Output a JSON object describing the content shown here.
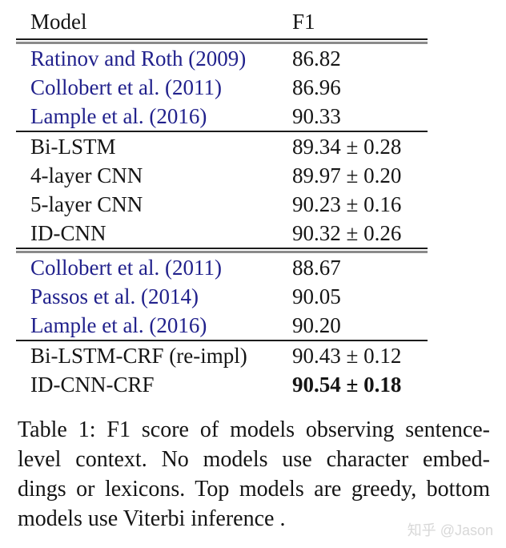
{
  "table": {
    "header": {
      "model": "Model",
      "f1": "F1"
    },
    "groups": [
      {
        "rows": [
          {
            "model": "Ratinov and Roth (2009)",
            "f1": "86.82",
            "link": true
          },
          {
            "model": "Collobert et al. (2011)",
            "f1": "86.96",
            "link": true
          },
          {
            "model": "Lample et al. (2016)",
            "f1": "90.33",
            "link": true
          }
        ]
      },
      {
        "rows": [
          {
            "model": "Bi-LSTM",
            "f1": "89.34 ± 0.28",
            "link": false
          },
          {
            "model": "4-layer CNN",
            "f1": "89.97 ± 0.20",
            "link": false
          },
          {
            "model": "5-layer CNN",
            "f1": "90.23 ± 0.16",
            "link": false
          },
          {
            "model": "ID-CNN",
            "f1": "90.32 ± 0.26",
            "link": false
          }
        ]
      },
      {
        "rows": [
          {
            "model": "Collobert et al. (2011)",
            "f1": "88.67",
            "link": true
          },
          {
            "model": "Passos et al. (2014)",
            "f1": "90.05",
            "link": true
          },
          {
            "model": "Lample et al. (2016)",
            "f1": "90.20",
            "link": true
          }
        ]
      },
      {
        "rows": [
          {
            "model": "Bi-LSTM-CRF (re-impl)",
            "f1": "90.43 ± 0.12",
            "link": false
          },
          {
            "model": "ID-CNN-CRF",
            "f1": "90.54 ± 0.18",
            "link": false,
            "bold": true
          }
        ]
      }
    ]
  },
  "caption": {
    "lines": [
      "Table 1: F1 score of models observing sentence-",
      "level context.  No models use character embed-",
      "dings or lexicons. Top models are greedy, bottom",
      "models use Viterbi inference ."
    ]
  },
  "watermark": "知乎 @Jason",
  "colors": {
    "link_blue": "#21218C",
    "text_black": "#151515",
    "rule_dark": "#1C1C1C",
    "rule_gray": "#8A8A8A",
    "watermark_gray": "#D8D8D8"
  }
}
